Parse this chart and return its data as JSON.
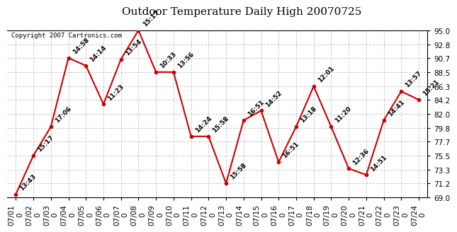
{
  "title": "Outdoor Temperature Daily High 20070725",
  "copyright": "Copyright 2007 Cartronics.com",
  "x_labels": [
    "07/01\n0",
    "07/02\n0",
    "07/03\n0",
    "07/04\n0",
    "07/05\n0",
    "07/06\n0",
    "07/07\n0",
    "07/08\n0",
    "07/09\n0",
    "07/10\n0",
    "07/11\n0",
    "07/12\n0",
    "07/13\n0",
    "07/14\n0",
    "07/15\n0",
    "07/16\n0",
    "07/17\n0",
    "07/18\n0",
    "07/19\n0",
    "07/20\n0",
    "07/21\n0",
    "07/22\n0",
    "07/23\n0",
    "07/24\n0"
  ],
  "y_values": [
    69.5,
    75.5,
    80.0,
    90.7,
    89.5,
    83.5,
    90.5,
    95.0,
    88.5,
    88.5,
    78.5,
    78.5,
    71.2,
    81.0,
    82.5,
    74.5,
    80.0,
    86.3,
    80.0,
    73.5,
    72.5,
    81.0,
    85.5,
    84.2
  ],
  "point_labels": [
    "13:43",
    "15:17",
    "17:06",
    "14:58",
    "14:14",
    "11:23",
    "13:54",
    "15:17",
    "10:33",
    "13:56",
    "14:24",
    "15:58",
    "15:58",
    "16:51",
    "14:52",
    "16:51",
    "13:18",
    "12:01",
    "11:20",
    "12:36",
    "14:51",
    "14:41",
    "13:57",
    "15:21"
  ],
  "y_ticks": [
    69.0,
    71.2,
    73.3,
    75.5,
    77.7,
    79.8,
    82.0,
    84.2,
    86.3,
    88.5,
    90.7,
    92.8,
    95.0
  ],
  "ylim": [
    69.0,
    95.0
  ],
  "line_color": "#cc0000",
  "marker_color": "#cc0000",
  "bg_color": "#ffffff",
  "grid_color": "#cccccc",
  "title_fontsize": 11,
  "label_fontsize": 6.5,
  "tick_fontsize": 7.5,
  "copyright_fontsize": 6.5
}
